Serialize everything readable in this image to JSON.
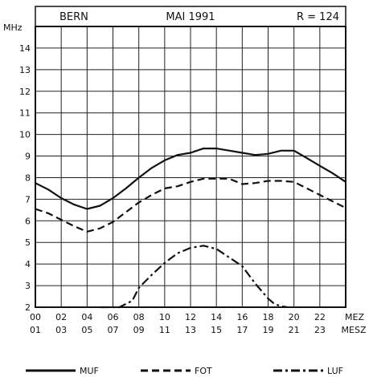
{
  "chart_data": {
    "type": "line",
    "header": {
      "station": "BERN",
      "period": "MAI 1991",
      "r_index": "R = 124"
    },
    "ylabel": "MHz",
    "ylim": [
      2,
      15
    ],
    "yticks": [
      "2",
      "3",
      "4",
      "5",
      "6",
      "7",
      "8",
      "9",
      "10",
      "11",
      "12",
      "13",
      "14"
    ],
    "xlim": [
      0,
      24
    ],
    "xticks_top": [
      "00",
      "02",
      "04",
      "06",
      "08",
      "10",
      "12",
      "14",
      "16",
      "18",
      "20",
      "22"
    ],
    "xticks_bottom": [
      "01",
      "03",
      "05",
      "07",
      "09",
      "11",
      "13",
      "15",
      "17",
      "19",
      "21",
      "23"
    ],
    "xlabel_top": "MEZ",
    "xlabel_bottom": "MESZ",
    "grid": true,
    "legend_position": "bottom",
    "series": [
      {
        "name": "MUF",
        "style": "solid",
        "points": [
          [
            0,
            7.75
          ],
          [
            1,
            7.45
          ],
          [
            2,
            7.05
          ],
          [
            3,
            6.75
          ],
          [
            4,
            6.55
          ],
          [
            5,
            6.7
          ],
          [
            6,
            7.05
          ],
          [
            7,
            7.5
          ],
          [
            8,
            8.0
          ],
          [
            9,
            8.45
          ],
          [
            10,
            8.8
          ],
          [
            11,
            9.05
          ],
          [
            12,
            9.15
          ],
          [
            13,
            9.35
          ],
          [
            14,
            9.35
          ],
          [
            15,
            9.25
          ],
          [
            16,
            9.15
          ],
          [
            17,
            9.05
          ],
          [
            18,
            9.1
          ],
          [
            19,
            9.25
          ],
          [
            20,
            9.25
          ],
          [
            21,
            8.9
          ],
          [
            22,
            8.55
          ],
          [
            23,
            8.2
          ],
          [
            24,
            7.8
          ]
        ]
      },
      {
        "name": "FOT",
        "style": "dashed",
        "points": [
          [
            0,
            6.55
          ],
          [
            1,
            6.35
          ],
          [
            2,
            6.05
          ],
          [
            3,
            5.75
          ],
          [
            4,
            5.5
          ],
          [
            5,
            5.65
          ],
          [
            6,
            5.95
          ],
          [
            7,
            6.4
          ],
          [
            8,
            6.85
          ],
          [
            9,
            7.2
          ],
          [
            10,
            7.5
          ],
          [
            11,
            7.6
          ],
          [
            12,
            7.8
          ],
          [
            13,
            7.95
          ],
          [
            14,
            7.95
          ],
          [
            15,
            7.95
          ],
          [
            16,
            7.7
          ],
          [
            17,
            7.75
          ],
          [
            18,
            7.85
          ],
          [
            19,
            7.85
          ],
          [
            20,
            7.8
          ],
          [
            21,
            7.5
          ],
          [
            22,
            7.2
          ],
          [
            23,
            6.9
          ],
          [
            24,
            6.6
          ]
        ]
      },
      {
        "name": "LUF",
        "style": "dashdot",
        "points": [
          [
            5,
            2.0
          ],
          [
            6.5,
            2.0
          ],
          [
            7.5,
            2.3
          ],
          [
            8,
            2.9
          ],
          [
            9,
            3.5
          ],
          [
            10,
            4.05
          ],
          [
            11,
            4.5
          ],
          [
            12,
            4.75
          ],
          [
            13,
            4.85
          ],
          [
            14,
            4.7
          ],
          [
            15,
            4.3
          ],
          [
            16,
            3.9
          ],
          [
            17,
            3.1
          ],
          [
            18,
            2.4
          ],
          [
            18.5,
            2.15
          ],
          [
            19,
            2.05
          ],
          [
            19.5,
            2.0
          ]
        ]
      }
    ]
  }
}
